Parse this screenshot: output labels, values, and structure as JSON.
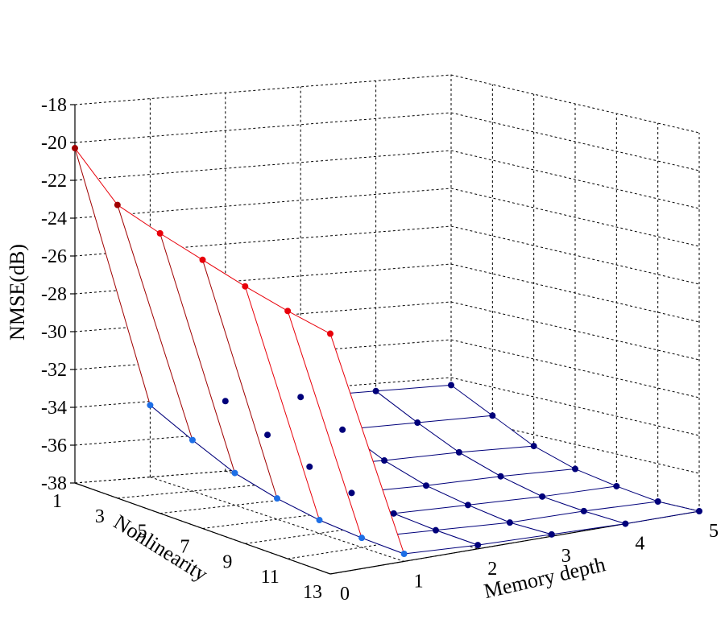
{
  "chart_data": {
    "type": "surface-3d",
    "xlabel": "Memory depth",
    "ylabel": "Nonlinearity",
    "zlabel": "NMSE(dB)",
    "x_ticks": [
      "0",
      "1",
      "2",
      "3",
      "4",
      "5"
    ],
    "y_ticks": [
      "1",
      "3",
      "5",
      "7",
      "9",
      "11",
      "13"
    ],
    "z_ticks": [
      "-18",
      "-20",
      "-22",
      "-24",
      "-26",
      "-28",
      "-30",
      "-32",
      "-34",
      "-36",
      "-38"
    ],
    "zlim": [
      -38,
      -18
    ],
    "memory_depth": [
      0,
      1,
      2,
      3,
      4,
      5
    ],
    "nonlinearity": [
      1,
      3,
      5,
      7,
      9,
      11,
      13
    ],
    "series": [
      {
        "values": [
          -20.3,
          -34.2,
          -34.3,
          -34.4,
          -34.4,
          -34.4
        ]
      },
      {
        "values": [
          -22.5,
          -35.3,
          -35.4,
          -35.5,
          -35.5,
          -35.5
        ]
      },
      {
        "values": [
          -23.2,
          -36.3,
          -36.4,
          -36.5,
          -36.5,
          -36.6
        ]
      },
      {
        "values": [
          -23.8,
          -36.9,
          -37.1,
          -37.2,
          -37.2,
          -37.3
        ]
      },
      {
        "values": [
          -24.4,
          -37.3,
          -37.5,
          -37.6,
          -37.7,
          -37.7
        ]
      },
      {
        "values": [
          -24.9,
          -37.5,
          -37.7,
          -37.9,
          -37.9,
          -38.0
        ]
      },
      {
        "values": [
          -25.3,
          -37.6,
          -37.8,
          -37.9,
          -38.0,
          -38.0
        ]
      }
    ],
    "grid": true,
    "colors": {
      "orange": "#ffa500",
      "red_light": "#e8000a",
      "red_dark": "#a00000",
      "blue_light": "#1e6fe6",
      "blue_dark": "#00007a"
    }
  }
}
